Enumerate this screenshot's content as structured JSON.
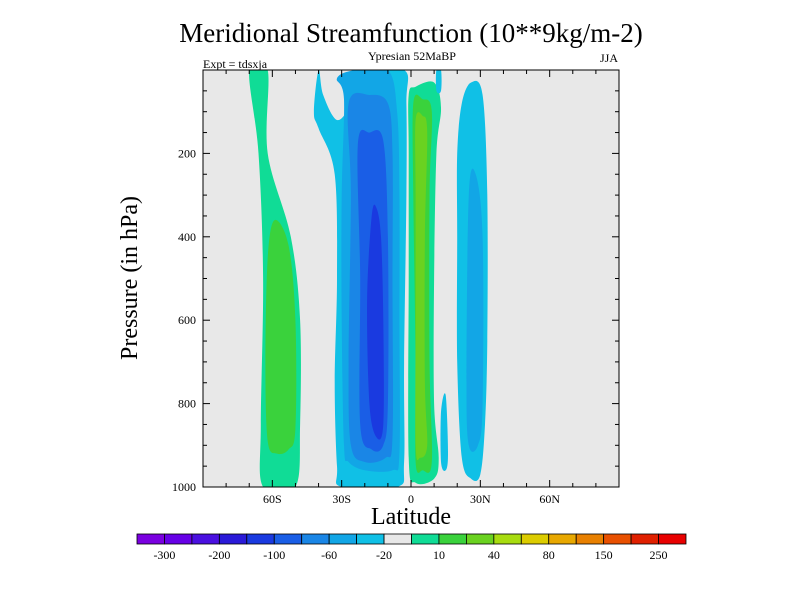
{
  "chart_data": {
    "type": "filled-contour",
    "title": "Meridional Streamfunction (10**9kg/m-2)",
    "subtitle_center": "Ypresian  52MaBP",
    "subtitle_left": "Expt = tdsxja",
    "subtitle_right": "JJA",
    "xlabel": "Latitude",
    "ylabel": "Pressure (in hPa)",
    "xlim": [
      -90,
      90
    ],
    "ylim": [
      1000,
      0
    ],
    "x_ticks": [
      {
        "value": -60,
        "label": "60S"
      },
      {
        "value": -30,
        "label": "30S"
      },
      {
        "value": 0,
        "label": "0"
      },
      {
        "value": 30,
        "label": "30N"
      },
      {
        "value": 60,
        "label": "60N"
      }
    ],
    "y_ticks": [
      {
        "value": 200,
        "label": "200"
      },
      {
        "value": 400,
        "label": "400"
      },
      {
        "value": 600,
        "label": "600"
      },
      {
        "value": 800,
        "label": "800"
      },
      {
        "value": 1000,
        "label": "1000"
      }
    ],
    "colorbar": {
      "colors": [
        "#7a00e0",
        "#6600e6",
        "#4a10e0",
        "#2a1ad8",
        "#1a3ae0",
        "#1a5ee6",
        "#1a86e6",
        "#12a6e6",
        "#10c0e6",
        "#e8e8e8",
        "#10dc96",
        "#3ad23c",
        "#6ad220",
        "#a8dc10",
        "#dccc00",
        "#e8a800",
        "#e88000",
        "#e85000",
        "#e02000",
        "#e80000"
      ],
      "labels": [
        "-300",
        "-200",
        "-100",
        "-60",
        "-20",
        "10",
        "40",
        "80",
        "150",
        "250"
      ]
    },
    "contour_levels": [
      -300,
      -250,
      -200,
      -150,
      -100,
      -80,
      -60,
      -40,
      -20,
      -10,
      10,
      20,
      40,
      60,
      80,
      100,
      150,
      200,
      250,
      300
    ],
    "cells": [
      {
        "name": "southern-hemisphere-cell-outer",
        "value": 10,
        "color": "#10dc96",
        "pts": [
          [
            -70,
            0
          ],
          [
            -62,
            0
          ],
          [
            -62,
            200
          ],
          [
            -52,
            400
          ],
          [
            -48,
            600
          ],
          [
            -48,
            850
          ],
          [
            -50,
            1000
          ],
          [
            -64,
            1000
          ],
          [
            -65,
            850
          ],
          [
            -64,
            500
          ],
          [
            -66,
            200
          ]
        ]
      },
      {
        "name": "southern-hemisphere-cell-core",
        "value": 20,
        "color": "#3ad23c",
        "pts": [
          [
            -59,
            360
          ],
          [
            -53,
            420
          ],
          [
            -50,
            600
          ],
          [
            -50,
            860
          ],
          [
            -53,
            910
          ],
          [
            -58,
            920
          ],
          [
            -62,
            890
          ],
          [
            -63,
            700
          ],
          [
            -62,
            450
          ]
        ]
      },
      {
        "name": "tropical-cell-level-1",
        "value": -10,
        "color": "#10c0e6",
        "pts": [
          [
            -42,
            100
          ],
          [
            -40,
            140
          ],
          [
            -33,
            250
          ],
          [
            -32,
            500
          ],
          [
            -33,
            750
          ],
          [
            -32,
            950
          ],
          [
            -30,
            1000
          ],
          [
            -6,
            1000
          ],
          [
            -3,
            940
          ],
          [
            -3,
            700
          ],
          [
            -2,
            300
          ],
          [
            -2,
            80
          ],
          [
            -3,
            0
          ],
          [
            -22,
            0
          ],
          [
            -26,
            80
          ],
          [
            -32,
            120
          ],
          [
            -38,
            60
          ],
          [
            -40,
            0
          ]
        ]
      },
      {
        "name": "tropical-cell-level-2",
        "value": -20,
        "color": "#12a6e6",
        "pts": [
          [
            -32,
            20
          ],
          [
            -29,
            70
          ],
          [
            -30,
            300
          ],
          [
            -30,
            600
          ],
          [
            -29,
            900
          ],
          [
            -27,
            940
          ],
          [
            -20,
            960
          ],
          [
            -8,
            960
          ],
          [
            -5,
            920
          ],
          [
            -5,
            600
          ],
          [
            -5,
            300
          ],
          [
            -6,
            100
          ],
          [
            -10,
            0
          ],
          [
            -24,
            0
          ]
        ]
      },
      {
        "name": "tropical-cell-level-3",
        "value": -40,
        "color": "#1a86e6",
        "pts": [
          [
            -27,
            80
          ],
          [
            -26,
            300
          ],
          [
            -27,
            700
          ],
          [
            -26,
            900
          ],
          [
            -20,
            940
          ],
          [
            -11,
            930
          ],
          [
            -8,
            880
          ],
          [
            -8,
            500
          ],
          [
            -8,
            200
          ],
          [
            -10,
            80
          ],
          [
            -18,
            60
          ]
        ]
      },
      {
        "name": "tropical-cell-level-4",
        "value": -60,
        "color": "#1a5ee6",
        "pts": [
          [
            -23,
            180
          ],
          [
            -22,
            500
          ],
          [
            -22,
            850
          ],
          [
            -17,
            910
          ],
          [
            -12,
            900
          ],
          [
            -10,
            800
          ],
          [
            -10,
            400
          ],
          [
            -12,
            170
          ],
          [
            -18,
            150
          ]
        ]
      },
      {
        "name": "tropical-cell-level-5",
        "value": -80,
        "color": "#1a3ae0",
        "pts": [
          [
            -17,
            350
          ],
          [
            -19,
            550
          ],
          [
            -18,
            800
          ],
          [
            -15,
            880
          ],
          [
            -12,
            850
          ],
          [
            -12,
            600
          ],
          [
            -13,
            400
          ],
          [
            -15,
            330
          ]
        ]
      },
      {
        "name": "equatorial-cell-outer",
        "value": 10,
        "color": "#10dc96",
        "pts": [
          [
            -1,
            60
          ],
          [
            2,
            40
          ],
          [
            10,
            30
          ],
          [
            13,
            90
          ],
          [
            11,
            200
          ],
          [
            10,
            500
          ],
          [
            10,
            800
          ],
          [
            12,
            930
          ],
          [
            10,
            980
          ],
          [
            2,
            990
          ],
          [
            -1,
            930
          ],
          [
            -1,
            500
          ],
          [
            -1,
            200
          ]
        ]
      },
      {
        "name": "equatorial-cell-level-2",
        "value": 20,
        "color": "#3ad23c",
        "pts": [
          [
            1,
            80
          ],
          [
            5,
            70
          ],
          [
            9,
            100
          ],
          [
            8,
            300
          ],
          [
            8,
            700
          ],
          [
            9,
            940
          ],
          [
            5,
            960
          ],
          [
            2,
            940
          ],
          [
            2,
            700
          ],
          [
            1,
            300
          ]
        ]
      },
      {
        "name": "equatorial-cell-level-3",
        "value": 40,
        "color": "#6ad220",
        "pts": [
          [
            2,
            120
          ],
          [
            5,
            110
          ],
          [
            7,
            150
          ],
          [
            6,
            400
          ],
          [
            6,
            750
          ],
          [
            7,
            900
          ],
          [
            4,
            930
          ],
          [
            2,
            900
          ],
          [
            2,
            600
          ],
          [
            2,
            300
          ]
        ]
      },
      {
        "name": "northern-subtropical-cell",
        "value": -10,
        "color": "#10c0e6",
        "pts": [
          [
            26,
            30
          ],
          [
            31,
            60
          ],
          [
            33,
            300
          ],
          [
            33,
            650
          ],
          [
            32,
            850
          ],
          [
            30,
            970
          ],
          [
            26,
            980
          ],
          [
            22,
            930
          ],
          [
            20,
            700
          ],
          [
            20,
            400
          ],
          [
            20,
            200
          ],
          [
            22,
            80
          ]
        ]
      },
      {
        "name": "northern-subtropical-cell-core",
        "value": -20,
        "color": "#12a6e6",
        "pts": [
          [
            28,
            250
          ],
          [
            31,
            400
          ],
          [
            31,
            800
          ],
          [
            29,
            900
          ],
          [
            25,
            900
          ],
          [
            24,
            750
          ],
          [
            25,
            300
          ]
        ]
      },
      {
        "name": "northern-midlatitude-weak-cell",
        "value": -10,
        "color": "#10c0e6",
        "pts": [
          [
            13,
            820
          ],
          [
            15,
            780
          ],
          [
            16,
            920
          ],
          [
            15,
            960
          ],
          [
            13,
            940
          ]
        ]
      },
      {
        "name": "upper-northern-sliver",
        "value": -10,
        "color": "#10c0e6",
        "pts": [
          [
            11,
            0
          ],
          [
            13,
            0
          ],
          [
            13,
            50
          ],
          [
            11,
            50
          ]
        ]
      }
    ]
  }
}
